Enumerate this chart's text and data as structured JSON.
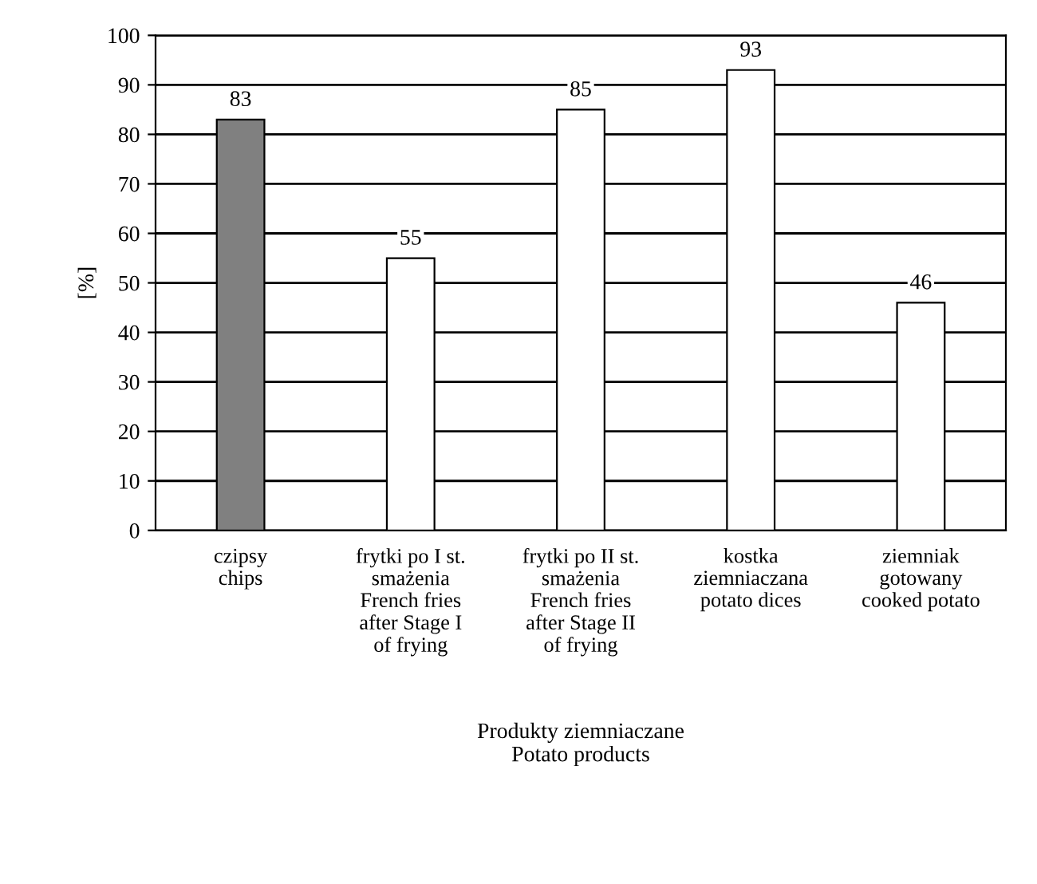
{
  "chart_data": {
    "type": "bar",
    "categories": [
      "czipsy\nchips",
      "frytki po I st.\nsmażenia\nFrench fries\nafter Stage I\nof frying",
      "frytki po II st.\nsmażenia\nFrench fries\nafter Stage II\nof frying",
      "kostka\nziemniaczana\npotato dices",
      "ziemniak\ngotowany\ncooked potato"
    ],
    "values": [
      83,
      55,
      85,
      93,
      46
    ],
    "colors": [
      "#808080",
      "#ffffff",
      "#ffffff",
      "#ffffff",
      "#ffffff"
    ],
    "xlabel": "Produkty ziemniaczane\nPotato products",
    "ylabel": "[%]",
    "ylim": [
      0,
      100
    ],
    "yticks": [
      0,
      10,
      20,
      30,
      40,
      50,
      60,
      70,
      80,
      90,
      100
    ],
    "grid": "y",
    "data_labels": true
  }
}
